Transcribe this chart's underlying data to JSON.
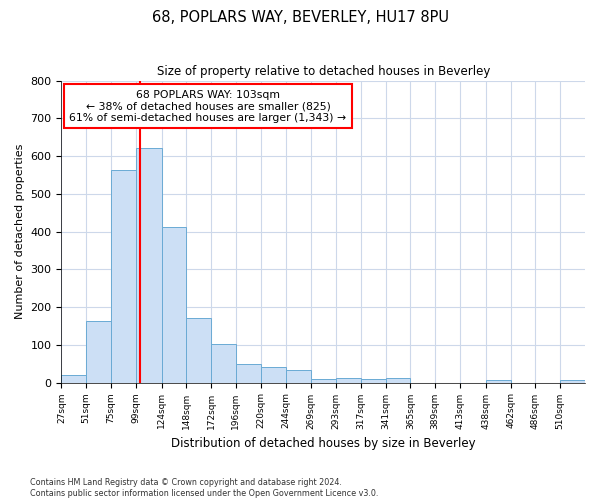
{
  "title": "68, POPLARS WAY, BEVERLEY, HU17 8PU",
  "subtitle": "Size of property relative to detached houses in Beverley",
  "xlabel": "Distribution of detached houses by size in Beverley",
  "ylabel": "Number of detached properties",
  "bar_labels": [
    "27sqm",
    "51sqm",
    "75sqm",
    "99sqm",
    "124sqm",
    "148sqm",
    "172sqm",
    "196sqm",
    "220sqm",
    "244sqm",
    "269sqm",
    "293sqm",
    "317sqm",
    "341sqm",
    "365sqm",
    "389sqm",
    "413sqm",
    "438sqm",
    "462sqm",
    "486sqm",
    "510sqm"
  ],
  "bar_values": [
    20,
    163,
    563,
    621,
    411,
    170,
    101,
    50,
    40,
    33,
    10,
    13,
    10,
    13,
    0,
    0,
    0,
    8,
    0,
    0,
    8
  ],
  "bar_color": "#ccdff5",
  "bar_edge_color": "#6aaad4",
  "property_line_x": 103,
  "property_line_label": "68 POPLARS WAY: 103sqm",
  "annotation_line1": "← 38% of detached houses are smaller (825)",
  "annotation_line2": "61% of semi-detached houses are larger (1,343) →",
  "ylim": [
    0,
    800
  ],
  "yticks": [
    0,
    100,
    200,
    300,
    400,
    500,
    600,
    700,
    800
  ],
  "footnote1": "Contains HM Land Registry data © Crown copyright and database right 2024.",
  "footnote2": "Contains public sector information licensed under the Open Government Licence v3.0.",
  "bin_edges": [
    27,
    51,
    75,
    99,
    124,
    148,
    172,
    196,
    220,
    244,
    269,
    293,
    317,
    341,
    365,
    389,
    413,
    438,
    462,
    486,
    510,
    534
  ]
}
